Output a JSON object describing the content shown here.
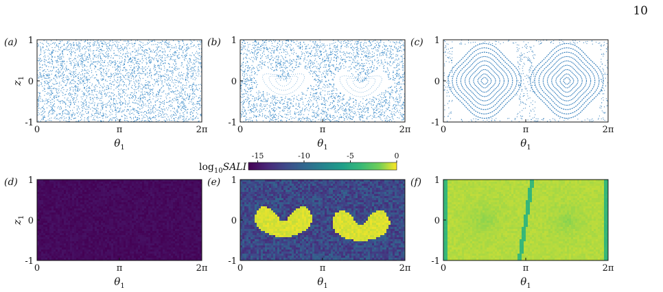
{
  "page_number": "10",
  "colorbar": {
    "label_log": "log",
    "label_sub": "10",
    "label_var": "SALI",
    "ticks": [
      "-15",
      "-10",
      "-5",
      "0"
    ],
    "tick_values": [
      -15,
      -10,
      -5,
      0
    ],
    "range": [
      -16,
      0
    ],
    "colormap": "viridis"
  },
  "chart_data": [
    {
      "type": "scatter",
      "panel": "(a)",
      "xlabel": "θ",
      "xlabel_sub": "1",
      "ylabel": "z",
      "ylabel_sub": "1",
      "xlim": [
        0,
        6.2832
      ],
      "ylim": [
        -1,
        1
      ],
      "xticks": [
        "0",
        "π",
        "2π"
      ],
      "yticks": [
        "1",
        "0",
        "-1"
      ],
      "color": "#3b8bc9",
      "pattern": "uniform-chaotic"
    },
    {
      "type": "scatter",
      "panel": "(b)",
      "xlabel": "θ",
      "xlabel_sub": "1",
      "xlim": [
        0,
        6.2832
      ],
      "ylim": [
        -1,
        1
      ],
      "xticks": [
        "0",
        "π",
        "2π"
      ],
      "yticks": [
        "1",
        "0",
        "-1"
      ],
      "color": "#3b8bc9",
      "pattern": "chaotic-sea-with-two-crescent-islands",
      "islands_center_theta": [
        1.65,
        4.6
      ],
      "islands_center_z": [
        0.05,
        0.0
      ]
    },
    {
      "type": "scatter",
      "panel": "(c)",
      "xlabel": "θ",
      "xlabel_sub": "1",
      "xlim": [
        0,
        6.2832
      ],
      "ylim": [
        -1,
        1
      ],
      "xticks": [
        "0",
        "π",
        "2π"
      ],
      "yticks": [
        "1",
        "0",
        "-1"
      ],
      "color": "#2a78b8",
      "pattern": "regular-invariant-curves",
      "centers_theta": [
        1.5708,
        4.7124
      ],
      "centers_z": [
        0,
        0
      ]
    },
    {
      "type": "heatmap",
      "panel": "(d)",
      "xlabel": "θ",
      "xlabel_sub": "1",
      "ylabel": "z",
      "ylabel_sub": "1",
      "xlim": [
        0,
        6.2832
      ],
      "ylim": [
        -1,
        1
      ],
      "xticks": [
        "0",
        "π",
        "2π"
      ],
      "yticks": [
        "1",
        "0",
        "-1"
      ],
      "value_log10_sali": -16,
      "pattern": "uniform-chaotic"
    },
    {
      "type": "heatmap",
      "panel": "(e)",
      "xlabel": "θ",
      "xlabel_sub": "1",
      "xlim": [
        0,
        6.2832
      ],
      "ylim": [
        -1,
        1
      ],
      "xticks": [
        "0",
        "π",
        "2π"
      ],
      "yticks": [
        "1",
        "0",
        "-1"
      ],
      "background_log10_sali": -12,
      "island_log10_sali": -0.5,
      "islands_center_theta": [
        1.65,
        4.6
      ],
      "islands_center_z": [
        0.05,
        -0.05
      ]
    },
    {
      "type": "heatmap",
      "panel": "(f)",
      "xlabel": "θ",
      "xlabel_sub": "1",
      "xlim": [
        0,
        6.2832
      ],
      "ylim": [
        -1,
        1
      ],
      "xticks": [
        "0",
        "π",
        "2π"
      ],
      "yticks": [
        "1",
        "0",
        "-1"
      ],
      "value_log10_sali": -1,
      "pattern": "regular"
    }
  ]
}
